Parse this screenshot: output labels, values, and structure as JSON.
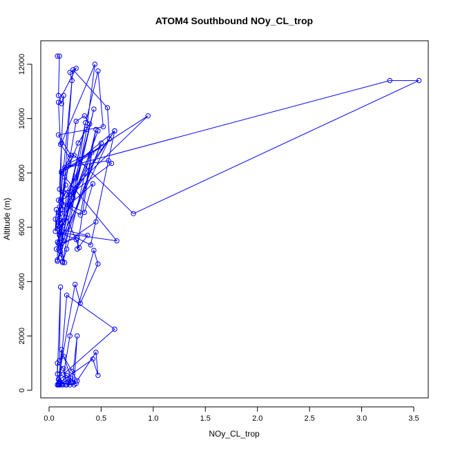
{
  "chart_data": {
    "type": "line",
    "title": "ATOM4 Southbound NOy_CL_trop",
    "xlabel": "NOy_CL_trop",
    "ylabel": "Altitude (m)",
    "xlim": [
      0,
      3.6
    ],
    "ylim": [
      0,
      12400
    ],
    "xticks": [
      0.0,
      0.5,
      1.0,
      1.5,
      2.0,
      2.5,
      3.0,
      3.5
    ],
    "xtick_labels": [
      "0.0",
      "0.5",
      "1.0",
      "1.5",
      "2.0",
      "2.5",
      "3.0",
      "3.5"
    ],
    "yticks": [
      0,
      2000,
      4000,
      6000,
      8000,
      10000,
      12000
    ],
    "ytick_labels": [
      "0",
      "2000",
      "4000",
      "6000",
      "8000",
      "10000",
      "12000"
    ],
    "grid": false,
    "line_color": "#0000ff",
    "marker": "open-circle",
    "series": [
      {
        "x": [
          0.08,
          0.1,
          0.09,
          0.12,
          0.14,
          0.1,
          0.13,
          0.22,
          0.2,
          0.26,
          0.09,
          0.11,
          0.2,
          0.26,
          0.34,
          0.39,
          0.28,
          0.15,
          0.12,
          0.3,
          0.45,
          0.17,
          0.13,
          0.36,
          0.44,
          0.12,
          0.1,
          0.09,
          0.23,
          0.56,
          0.58,
          0.1,
          0.17,
          0.25,
          0.3,
          0.63,
          0.11,
          0.09,
          0.2,
          0.43,
          0.14,
          0.12,
          0.35,
          0.23,
          0.47,
          0.1,
          0.09,
          0.27,
          0.4,
          0.63,
          0.2,
          0.11,
          0.08,
          0.08,
          0.47,
          0.52,
          0.09,
          0.21,
          0.12,
          0.65,
          0.11,
          0.26,
          0.29,
          0.17,
          0.09,
          0.14,
          0.22,
          0.95,
          0.12,
          0.1,
          0.07,
          0.06,
          0.1,
          0.13,
          0.41,
          0.27,
          0.37,
          0.08,
          0.19,
          0.5,
          0.12,
          0.24,
          0.81,
          3.55,
          3.27,
          0.15,
          0.57,
          0.6,
          0.11,
          0.25,
          0.11,
          0.13,
          0.06,
          0.16,
          0.09,
          0.34,
          0.42,
          0.2,
          0.08,
          0.5,
          0.11,
          0.15,
          0.07,
          0.45
        ],
        "y": [
          12300,
          12300,
          10850,
          10550,
          10850,
          7400,
          6650,
          11400,
          11700,
          11850,
          10600,
          9050,
          8550,
          9900,
          10100,
          9800,
          9100,
          7850,
          6900,
          6450,
          9600,
          5200,
          4700,
          9600,
          12000,
          9100,
          5750,
          6200,
          11800,
          10400,
          9250,
          5450,
          7200,
          7800,
          8500,
          9550,
          6500,
          6050,
          6800,
          10350,
          5500,
          5850,
          9850,
          7100,
          9550,
          5700,
          5400,
          5600,
          5350,
          9550,
          7200,
          5100,
          4800,
          5450,
          11750,
          9700,
          9400,
          8650,
          8000,
          5500,
          5800,
          5550,
          5250,
          6350,
          6200,
          7300,
          7400,
          10100,
          8050,
          6250,
          6650,
          5850,
          6750,
          6050,
          8750,
          5200,
          5700,
          5950,
          8350,
          8950,
          8000,
          8650,
          6500,
          11400,
          11400,
          8200,
          8450,
          8350,
          6950,
          7850,
          5300,
          4750,
          6300,
          7550,
          7000,
          6550,
          7600,
          6850,
          4750,
          9100,
          5250,
          4700,
          5200,
          6200
        ]
      },
      {
        "x": [
          0.09,
          0.12,
          0.1,
          0.25,
          0.3,
          0.47,
          0.43,
          0.2,
          0.14,
          0.63,
          0.17,
          0.1,
          0.18,
          0.22,
          0.27,
          0.24,
          0.16,
          0.13,
          0.2,
          0.11,
          0.09,
          0.08,
          0.08,
          0.14,
          0.16,
          0.21,
          0.08,
          0.1,
          0.12,
          0.1
        ],
        "y": [
          200,
          200,
          600,
          3900,
          3200,
          4650,
          5150,
          2000,
          600,
          2250,
          3500,
          200,
          400,
          300,
          2000,
          200,
          200,
          200,
          200,
          300,
          400,
          200,
          1000,
          800,
          400,
          300,
          200,
          200,
          250,
          300
        ]
      },
      {
        "x": [
          0.08,
          0.11,
          0.1,
          0.14,
          0.22,
          0.27,
          0.45,
          0.47,
          0.42,
          0.09,
          0.12,
          0.21,
          0.17,
          0.26,
          0.17,
          0.09
        ],
        "y": [
          600,
          3800,
          1100,
          1250,
          700,
          350,
          1400,
          550,
          1150,
          250,
          1500,
          450,
          200,
          250,
          550,
          400
        ]
      }
    ]
  }
}
